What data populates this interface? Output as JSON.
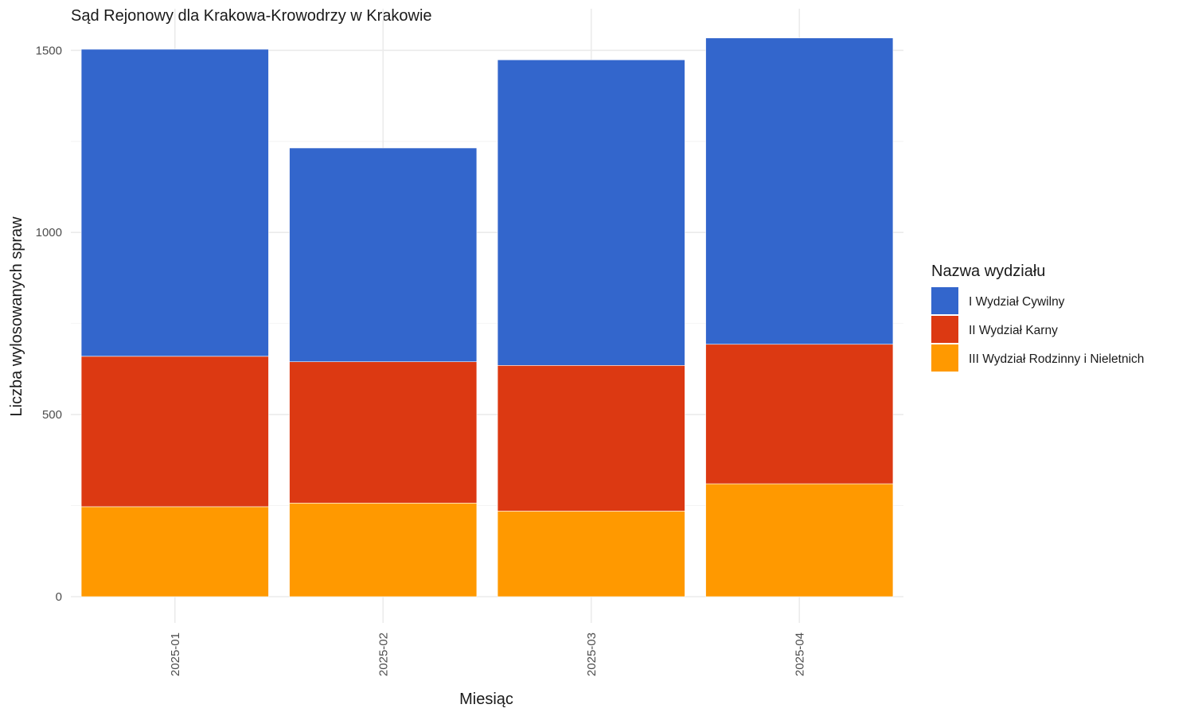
{
  "chart_data": {
    "type": "bar",
    "stacked": true,
    "title": "Sąd Rejonowy dla Krakowa-Krowodrzy w Krakowie",
    "xlabel": "Miesiąc",
    "ylabel": "Liczba wylosowanych spraw",
    "categories": [
      "2025-01",
      "2025-02",
      "2025-03",
      "2025-04"
    ],
    "ylim": [
      0,
      1600
    ],
    "yticks": [
      0,
      500,
      1000,
      1500
    ],
    "grid": true,
    "legend": {
      "title": "Nazwa wydziału",
      "position": "right"
    },
    "series": [
      {
        "name": "III Wydział Rodzinny i Nieletnich",
        "color": "#FF9900",
        "values": [
          247,
          257,
          235,
          310
        ]
      },
      {
        "name": "II Wydział Karny",
        "color": "#DC3912",
        "values": [
          413,
          388,
          400,
          383
        ]
      },
      {
        "name": "I Wydział Cywilny",
        "color": "#3366CC",
        "values": [
          843,
          587,
          839,
          841
        ]
      }
    ],
    "legend_order": [
      "I Wydział Cywilny",
      "II Wydział Karny",
      "III Wydział Rodzinny i Nieletnich"
    ]
  }
}
